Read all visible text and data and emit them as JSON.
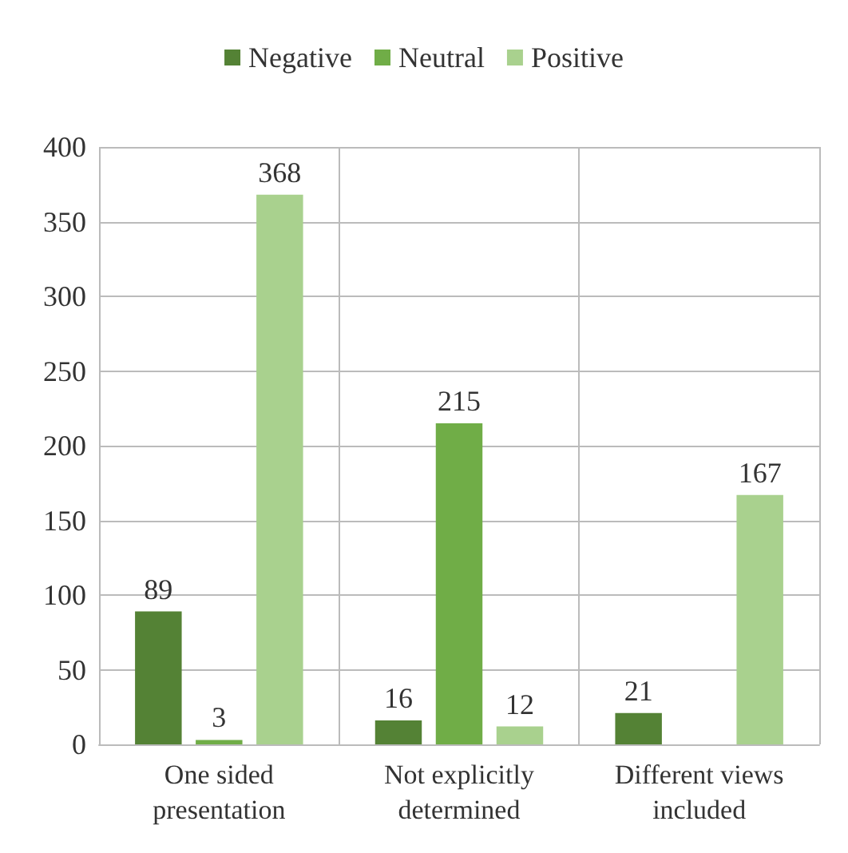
{
  "chart_data": {
    "type": "bar",
    "categories": [
      "One sided presentation",
      "Not explicitly determined",
      "Different views included"
    ],
    "series": [
      {
        "name": "Negative",
        "color": "#548235",
        "values": [
          89,
          16,
          21
        ]
      },
      {
        "name": "Neutral",
        "color": "#70ad47",
        "values": [
          3,
          215,
          null
        ]
      },
      {
        "name": "Positive",
        "color": "#a9d18e",
        "values": [
          368,
          12,
          167
        ]
      }
    ],
    "ylim": [
      0,
      400
    ],
    "yticks": [
      0,
      50,
      100,
      150,
      200,
      250,
      300,
      350,
      400
    ],
    "grid": true,
    "legend": "top",
    "data_labels": true
  }
}
